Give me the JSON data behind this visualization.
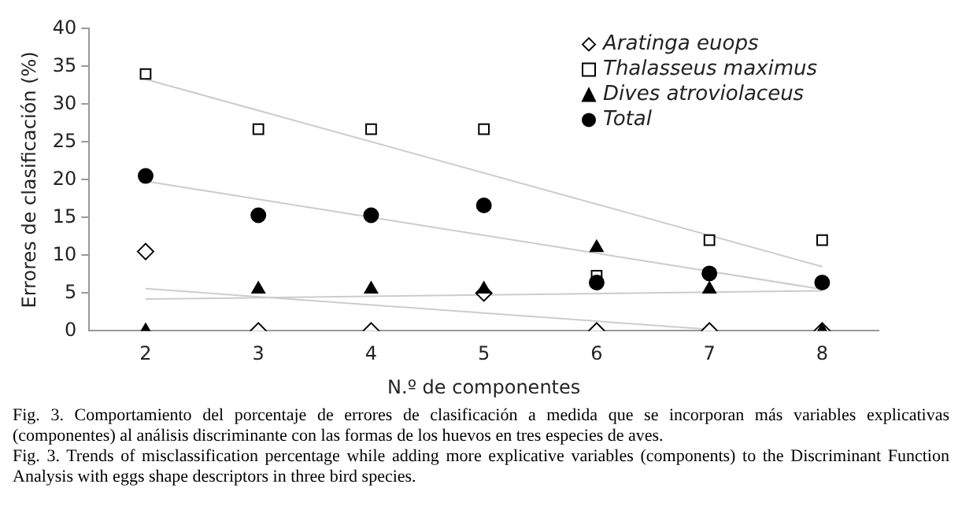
{
  "chart_data": {
    "type": "scatter",
    "xlabel": "N.º de componentes",
    "ylabel": "Errores de clasificación (%)",
    "x": [
      2,
      3,
      4,
      5,
      6,
      7,
      8
    ],
    "xlim": [
      1.5,
      8.5
    ],
    "xticks": [
      2,
      3,
      4,
      5,
      6,
      7,
      8
    ],
    "ylim": [
      0,
      40
    ],
    "yticks": [
      0,
      5,
      10,
      15,
      20,
      25,
      30,
      35,
      40
    ],
    "grid": false,
    "legend": "top right",
    "series": [
      {
        "name": "Aratinga euops",
        "color": "#000000",
        "marker": "diamond",
        "values": [
          10.5,
          0,
          0,
          5,
          0,
          0,
          0
        ]
      },
      {
        "name": "Thalasseus maximus",
        "color": "#000000",
        "marker": "square",
        "values": [
          34,
          26.7,
          26.7,
          26.7,
          7.3,
          12,
          12
        ]
      },
      {
        "name": "Dives atroviolaceus",
        "color": "#000000",
        "marker": "triangle",
        "values": [
          0,
          5.5,
          5.5,
          5.5,
          11,
          5.5,
          0
        ]
      },
      {
        "name": "Total",
        "color": "#000000",
        "marker": "circle",
        "values": [
          20.5,
          15.3,
          15.3,
          16.6,
          6.4,
          7.6,
          6.4
        ]
      },
      {
        "type": "line",
        "color": "#cccccc",
        "marker": "none",
        "x": [
          2,
          7
        ],
        "values": [
          5.6,
          0.2
        ]
      },
      {
        "type": "line",
        "color": "#cccccc",
        "marker": "none",
        "x": [
          2,
          8
        ],
        "values": [
          33.3,
          8.5
        ]
      },
      {
        "type": "line",
        "color": "#cccccc",
        "marker": "none",
        "x": [
          2,
          8
        ],
        "values": [
          4.2,
          5.3
        ]
      },
      {
        "type": "line",
        "color": "#cccccc",
        "marker": "none",
        "x": [
          2,
          8
        ],
        "values": [
          19.8,
          5.5
        ]
      }
    ],
    "annotations": [
      "Fig. 3. Comportamiento del porcentaje de errores de clasificación a medida que se incorporan más variables explicativas (componentes) al análisis discriminante con las formas de los huevos en tres especies de aves.",
      "Fig. 3. Trends of misclassification percentage while adding more explicative variables (components) to the Discriminant Function Analysis with eggs shape descriptors in three bird species."
    ]
  }
}
